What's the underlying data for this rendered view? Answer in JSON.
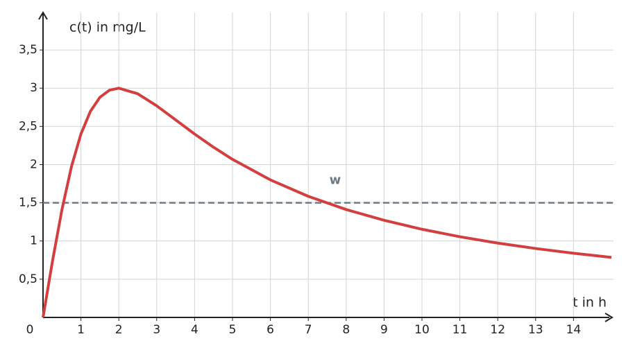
{
  "chart_data": {
    "type": "line",
    "y_label": "c(t) in mg/L",
    "x_label": "t in h",
    "x": [
      0,
      0.25,
      0.5,
      0.75,
      1,
      1.25,
      1.5,
      1.75,
      2,
      2.5,
      3,
      3.5,
      4,
      4.5,
      5,
      6,
      7,
      8,
      9,
      10,
      11,
      12,
      13,
      14,
      15
    ],
    "series": [
      {
        "color": "#d33f3f",
        "values": [
          0,
          0.738,
          1.412,
          1.973,
          2.4,
          2.697,
          2.88,
          2.973,
          3,
          2.927,
          2.769,
          2.585,
          2.4,
          2.227,
          2.069,
          1.8,
          1.585,
          1.412,
          1.271,
          1.154,
          1.056,
          0.973,
          0.902,
          0.84,
          0.786
        ]
      }
    ],
    "xlim": [
      0,
      15
    ],
    "ylim": [
      0,
      3.9
    ],
    "xticks": [
      0,
      1,
      2,
      3,
      4,
      5,
      6,
      7,
      8,
      9,
      10,
      11,
      12,
      13,
      14
    ],
    "yticks": [
      {
        "value": 0.5,
        "label": "0,5"
      },
      1,
      {
        "value": 1.5,
        "label": "1,5"
      },
      2,
      {
        "value": 2.5,
        "label": "2,5"
      },
      3,
      {
        "value": 3.5,
        "label": "3,5"
      }
    ],
    "grid": true,
    "reference_line": {
      "label": "w",
      "value": 1.5,
      "color": "#6c7a86"
    }
  }
}
